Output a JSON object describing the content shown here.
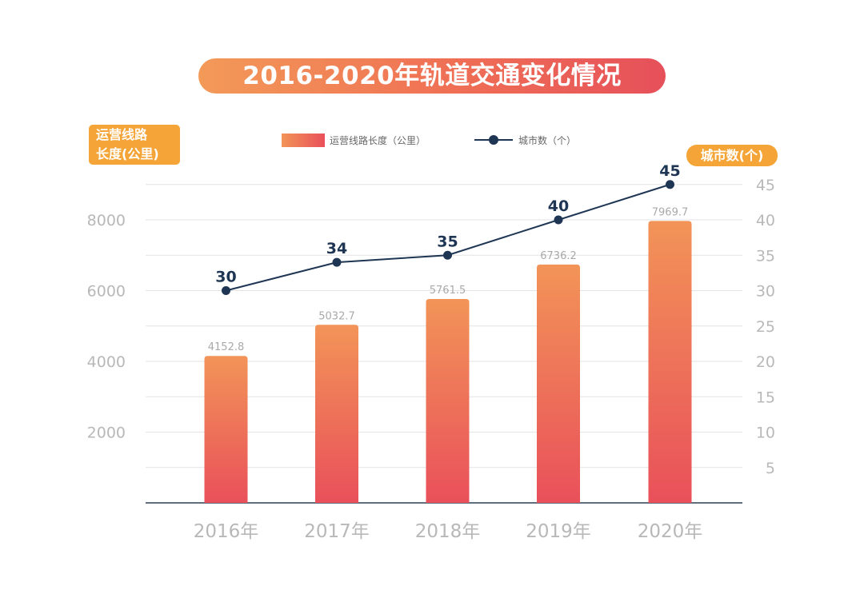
{
  "title": "2016-2020年轨道交通变化情况",
  "left_axis_badge": {
    "line1": "运营线路",
    "line2": "长度(公里)"
  },
  "right_axis_badge": "城市数(个)",
  "legend": {
    "bar_label": "运营线路长度（公里）",
    "line_label": "城市数（个）"
  },
  "colors": {
    "bar_top": "#f29458",
    "bar_bottom": "#e9505a",
    "line": "#1e3553",
    "badge": "#f5a537",
    "axis_text": "#b8b8b8"
  },
  "chart_data": {
    "type": "bar+line",
    "categories": [
      "2016年",
      "2017年",
      "2018年",
      "2019年",
      "2020年"
    ],
    "series": [
      {
        "name": "运营线路长度（公里）",
        "type": "bar",
        "axis": "left",
        "values": [
          4152.8,
          5032.7,
          5761.5,
          6736.2,
          7969.7
        ],
        "value_labels": [
          "4152.8",
          "5032.7",
          "5761.5",
          "6736.2",
          "7969.7"
        ]
      },
      {
        "name": "城市数（个）",
        "type": "line",
        "axis": "right",
        "values": [
          30,
          34,
          35,
          40,
          45
        ],
        "value_labels": [
          "30",
          "34",
          "35",
          "40",
          "45"
        ]
      }
    ],
    "left_axis": {
      "ticks": [
        "2000",
        "4000",
        "6000",
        "8000"
      ],
      "tick_values": [
        2000,
        4000,
        6000,
        8000
      ],
      "range": [
        0,
        9000
      ]
    },
    "right_axis": {
      "ticks": [
        "5",
        "10",
        "15",
        "20",
        "25",
        "30",
        "35",
        "40",
        "45"
      ],
      "tick_values": [
        5,
        10,
        15,
        20,
        25,
        30,
        35,
        40,
        45
      ],
      "range": [
        0,
        45
      ]
    },
    "grid": true,
    "legend_position": "top-center"
  }
}
